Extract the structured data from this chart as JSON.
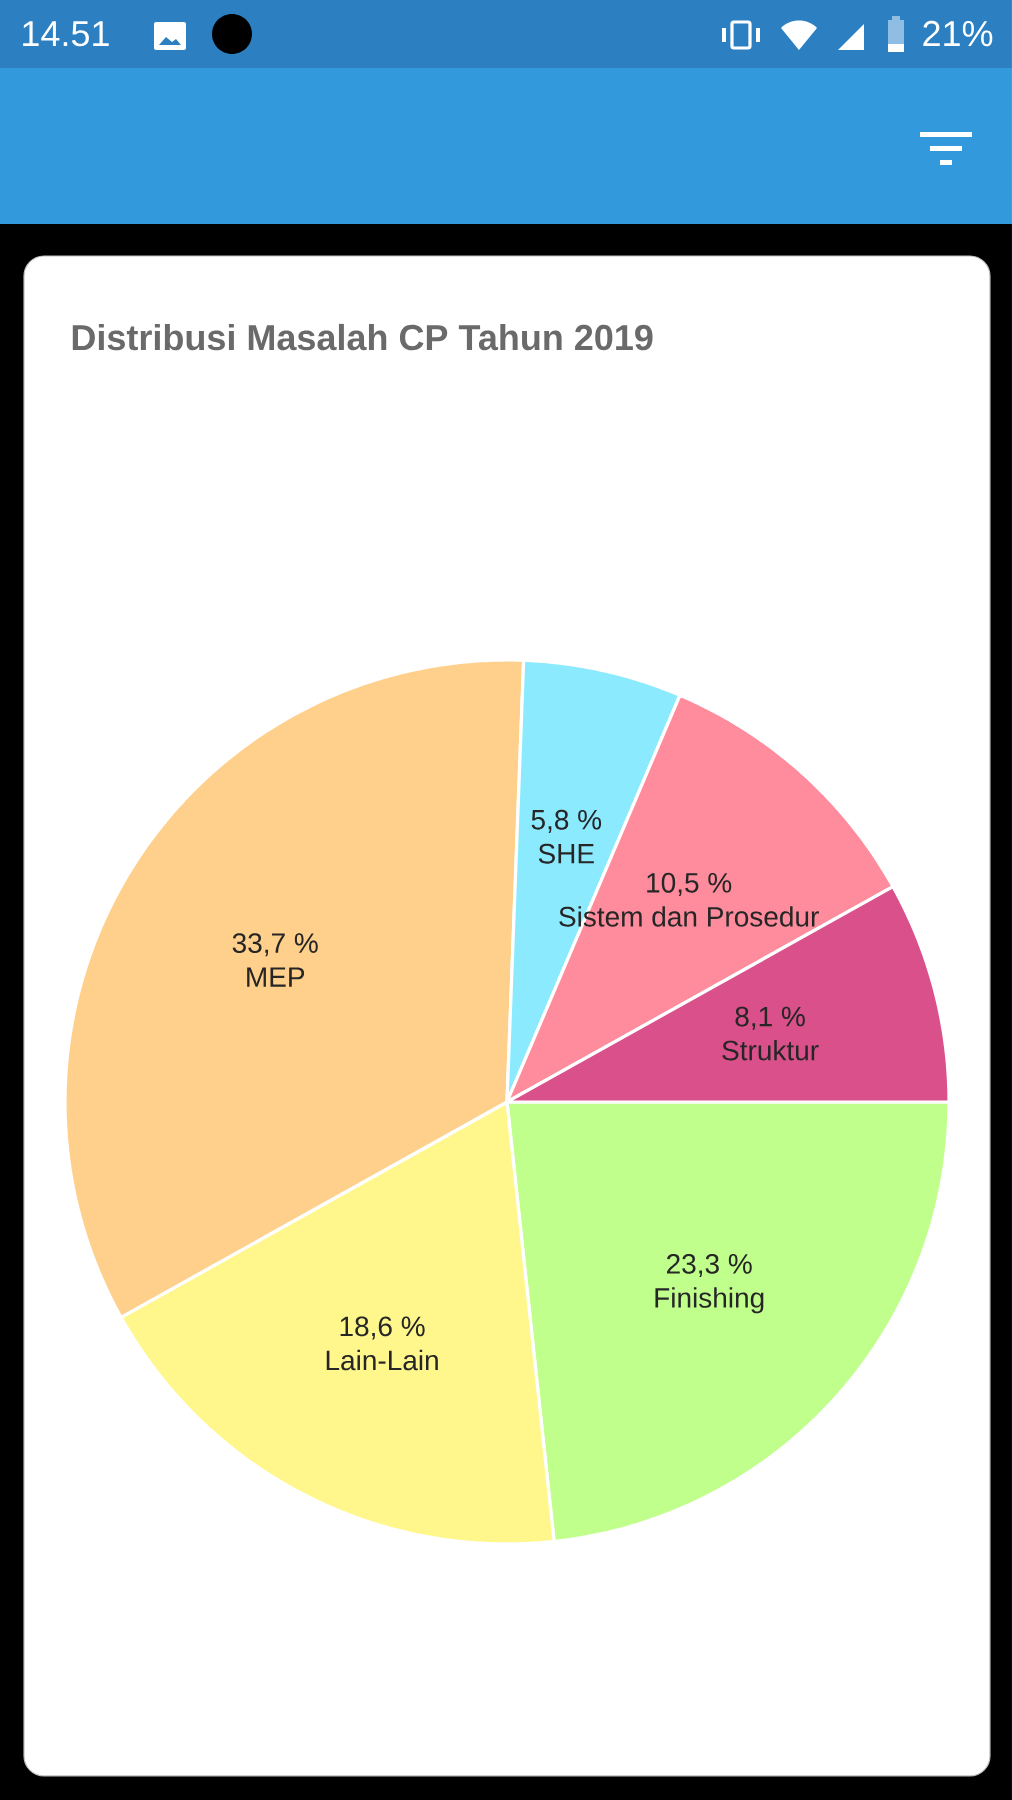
{
  "chart_data": {
    "type": "pie",
    "title": "Distribusi Masalah CP Tahun 2019",
    "categories": [
      "Finishing",
      "Lain-Lain",
      "MEP",
      "SHE",
      "Sistem dan Prosedur",
      "Struktur"
    ],
    "values": [
      23.3,
      18.6,
      33.7,
      5.8,
      10.5,
      8.1
    ],
    "value_labels": [
      "23,3 %",
      "18,6 %",
      "33,7 %",
      "5,8 %",
      "10,5 %",
      "8,1 %"
    ],
    "colors": [
      "#c0ff8c",
      "#fff78c",
      "#ffd08c",
      "#8ceaff",
      "#ff8c9d",
      "#d9508a"
    ],
    "annotations": [
      "14.51",
      "21%"
    ]
  }
}
